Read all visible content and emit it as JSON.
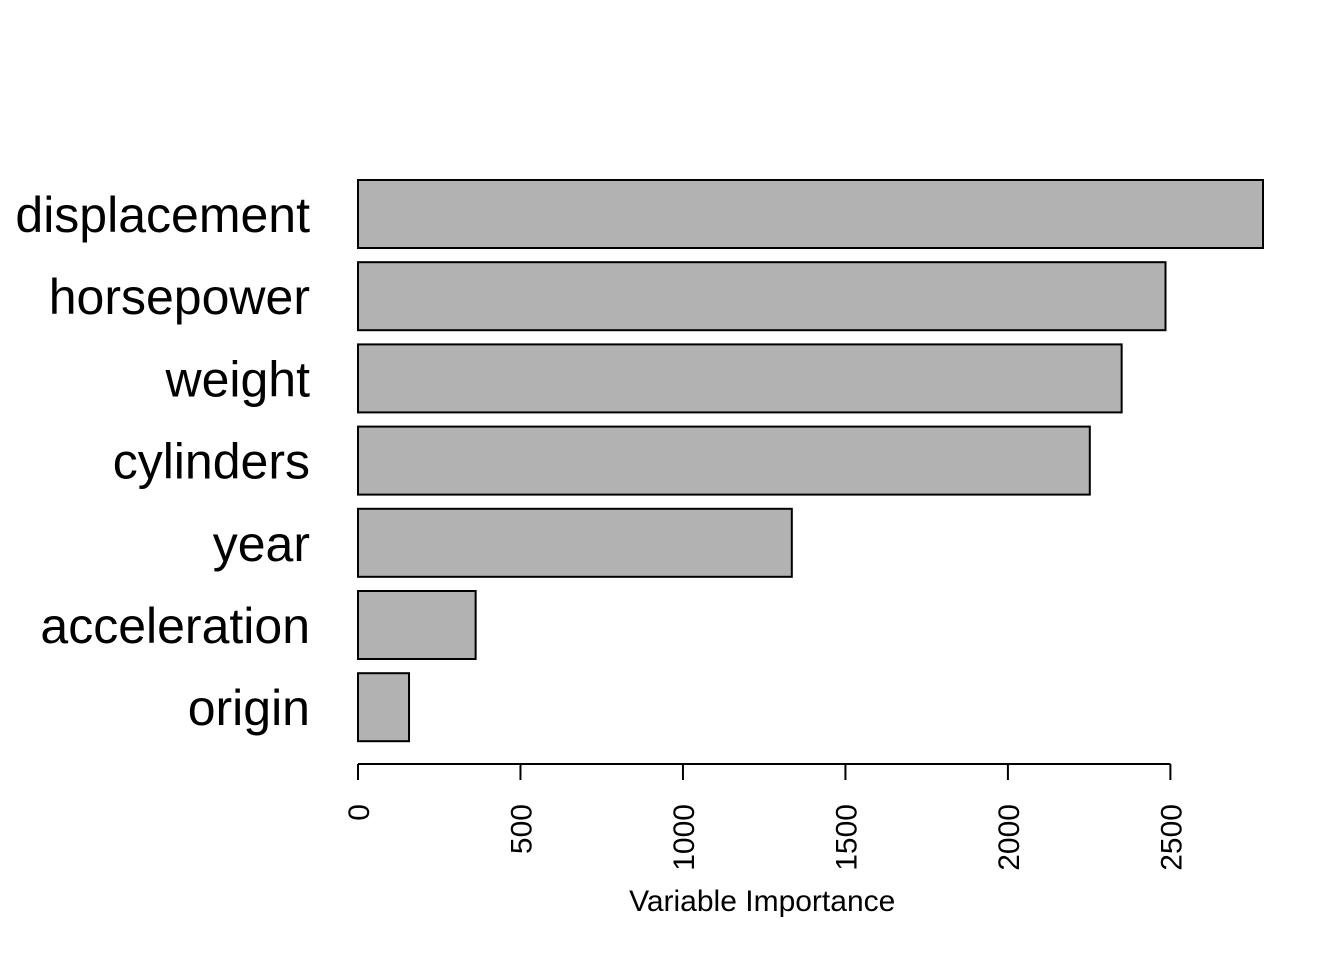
{
  "chart_data": {
    "type": "bar",
    "orientation": "horizontal",
    "categories": [
      "displacement",
      "horsepower",
      "weight",
      "cylinders",
      "year",
      "acceleration",
      "origin"
    ],
    "values": [
      2785,
      2485,
      2350,
      2252,
      1335,
      362,
      157
    ],
    "xlabel": "Variable Importance",
    "ylabel": "",
    "xlim": [
      0,
      2785
    ],
    "xticks": [
      0,
      500,
      1000,
      1500,
      2000,
      2500
    ],
    "xtick_labels": [
      "0",
      "500",
      "1000",
      "1500",
      "2000",
      "2500"
    ],
    "bar_color": "#b2b2b2",
    "bar_border": "#000000",
    "grid": false,
    "legend": "none"
  }
}
